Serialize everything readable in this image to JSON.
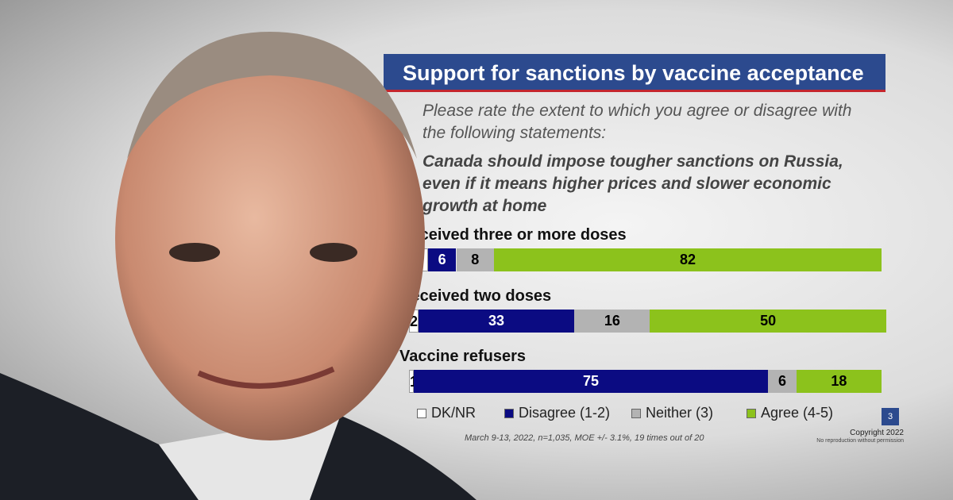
{
  "chart_data": {
    "type": "stacked-bar",
    "title": "Support for sanctions by vaccine acceptance",
    "question": "Please rate the extent to which you agree or disagree with the following statements:",
    "statement": "Canada should impose tougher sanctions on Russia, even if it means higher prices and slower economic growth at home",
    "categories": [
      "Received three or more doses",
      "Received two doses",
      "Vaccine refusers"
    ],
    "series": [
      {
        "name": "DK/NR",
        "color": "#ffffff",
        "values": [
          4,
          2,
          1
        ]
      },
      {
        "name": "Disagree (1-2)",
        "color": "#0b0b82",
        "values": [
          6,
          33,
          75
        ]
      },
      {
        "name": "Neither (3)",
        "color": "#b3b3b3",
        "values": [
          8,
          16,
          6
        ]
      },
      {
        "name": "Agree (4-5)",
        "color": "#8cc21c",
        "values": [
          82,
          50,
          18
        ]
      }
    ],
    "xlim": [
      0,
      100
    ],
    "legend": "bottom",
    "footnote": "March 9-13, 2022, n=1,035, MOE +/- 3.1%, 19 times out of 20",
    "copyright": "Copyright 2022",
    "notice": "No reproduction without permission",
    "page": 3
  }
}
